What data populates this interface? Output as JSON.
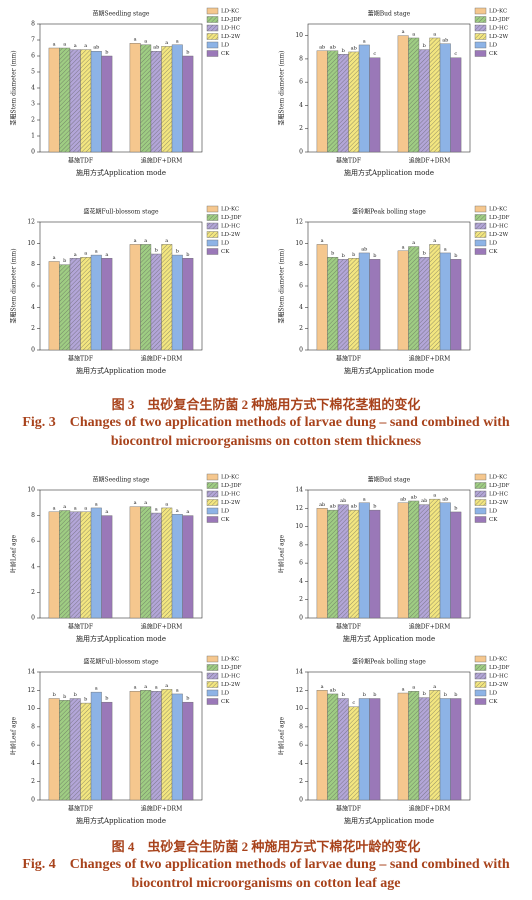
{
  "chart_data": [
    {
      "type": "bar",
      "title": "苗期Seedling stage",
      "y_label": "茎粗Stem diameter (mm)",
      "x_label": "施用方式Application mode",
      "categories": [
        "基施TDF",
        "追施DF+DRM"
      ],
      "ylim": [
        0,
        8
      ],
      "yticks": [
        0,
        1,
        2,
        3,
        4,
        5,
        6,
        7,
        8
      ],
      "series": [
        {
          "name": "LD-KC",
          "color": "#f5c78e",
          "hatch": false,
          "values": [
            6.5,
            6.8
          ],
          "letters": [
            "a",
            "a"
          ]
        },
        {
          "name": "LD-JDF",
          "color": "#9fcd83",
          "hatch": true,
          "values": [
            6.5,
            6.7
          ],
          "letters": [
            "a",
            "a"
          ]
        },
        {
          "name": "LD-HC",
          "color": "#b3a6d8",
          "hatch": true,
          "values": [
            6.4,
            6.3
          ],
          "letters": [
            "a",
            "ab"
          ]
        },
        {
          "name": "LD-2W",
          "color": "#f3e680",
          "hatch": true,
          "values": [
            6.4,
            6.6
          ],
          "letters": [
            "a",
            "a"
          ]
        },
        {
          "name": "LD",
          "color": "#8db3e6",
          "hatch": false,
          "values": [
            6.3,
            6.7
          ],
          "letters": [
            "ab",
            "a"
          ]
        },
        {
          "name": "CK",
          "color": "#9a78b8",
          "hatch": false,
          "values": [
            6.0,
            6.0
          ],
          "letters": [
            "b",
            "b"
          ]
        }
      ]
    },
    {
      "type": "bar",
      "title": "蕾期Bud stage",
      "y_label": "茎粗Stem diameter (mm)",
      "x_label": "施用方式Application mode",
      "categories": [
        "基施TDF",
        "追施DF+DRM"
      ],
      "ylim": [
        0,
        11
      ],
      "yticks": [
        0,
        2,
        4,
        6,
        8,
        10
      ],
      "series": [
        {
          "name": "LD-KC",
          "color": "#f5c78e",
          "hatch": false,
          "values": [
            8.7,
            10.0
          ],
          "letters": [
            "ab",
            "a"
          ]
        },
        {
          "name": "LD-JDF",
          "color": "#9fcd83",
          "hatch": true,
          "values": [
            8.7,
            9.8
          ],
          "letters": [
            "ab",
            "a"
          ]
        },
        {
          "name": "LD-HC",
          "color": "#b3a6d8",
          "hatch": true,
          "values": [
            8.4,
            8.8
          ],
          "letters": [
            "b",
            "b"
          ]
        },
        {
          "name": "LD-2W",
          "color": "#f3e680",
          "hatch": true,
          "values": [
            8.6,
            9.8
          ],
          "letters": [
            "ab",
            "a"
          ]
        },
        {
          "name": "LD",
          "color": "#8db3e6",
          "hatch": false,
          "values": [
            9.2,
            9.3
          ],
          "letters": [
            "a",
            "ab"
          ]
        },
        {
          "name": "CK",
          "color": "#9a78b8",
          "hatch": false,
          "values": [
            8.1,
            8.1
          ],
          "letters": [
            "c",
            "c"
          ]
        }
      ]
    },
    {
      "type": "bar",
      "title": "盛花期Full-blossom stage",
      "y_label": "茎粗Stem diameter (mm)",
      "x_label": "施用方式Application mode",
      "categories": [
        "基施TDF",
        "追施DF+DRM"
      ],
      "ylim": [
        0,
        12
      ],
      "yticks": [
        0,
        2,
        4,
        6,
        8,
        10,
        12
      ],
      "series": [
        {
          "name": "LD-KC",
          "color": "#f5c78e",
          "hatch": false,
          "values": [
            8.3,
            9.9
          ],
          "letters": [
            "a",
            "a"
          ]
        },
        {
          "name": "LD-JDF",
          "color": "#9fcd83",
          "hatch": true,
          "values": [
            8.0,
            9.9
          ],
          "letters": [
            "b",
            "a"
          ]
        },
        {
          "name": "LD-HC",
          "color": "#b3a6d8",
          "hatch": true,
          "values": [
            8.6,
            9.0
          ],
          "letters": [
            "a",
            "b"
          ]
        },
        {
          "name": "LD-2W",
          "color": "#f3e680",
          "hatch": true,
          "values": [
            8.7,
            9.9
          ],
          "letters": [
            "a",
            "a"
          ]
        },
        {
          "name": "LD",
          "color": "#8db3e6",
          "hatch": false,
          "values": [
            8.9,
            8.9
          ],
          "letters": [
            "a",
            "b"
          ]
        },
        {
          "name": "CK",
          "color": "#9a78b8",
          "hatch": false,
          "values": [
            8.6,
            8.6
          ],
          "letters": [
            "a",
            "b"
          ]
        }
      ]
    },
    {
      "type": "bar",
      "title": "盛铃期Peak bolling stage",
      "y_label": "茎粗Stem diameter (mm)",
      "x_label": "施用方式Application mode",
      "categories": [
        "基施TDF",
        "追施DF+DRM"
      ],
      "ylim": [
        0,
        12
      ],
      "yticks": [
        0,
        2,
        4,
        6,
        8,
        10,
        12
      ],
      "series": [
        {
          "name": "LD-KC",
          "color": "#f5c78e",
          "hatch": false,
          "values": [
            9.9,
            9.3
          ],
          "letters": [
            "a",
            "a"
          ]
        },
        {
          "name": "LD-JDF",
          "color": "#9fcd83",
          "hatch": true,
          "values": [
            8.7,
            9.7
          ],
          "letters": [
            "b",
            "a"
          ]
        },
        {
          "name": "LD-HC",
          "color": "#b3a6d8",
          "hatch": true,
          "values": [
            8.5,
            8.7
          ],
          "letters": [
            "b",
            "b"
          ]
        },
        {
          "name": "LD-2W",
          "color": "#f3e680",
          "hatch": true,
          "values": [
            8.6,
            9.9
          ],
          "letters": [
            "b",
            "a"
          ]
        },
        {
          "name": "LD",
          "color": "#8db3e6",
          "hatch": false,
          "values": [
            9.1,
            9.1
          ],
          "letters": [
            "ab",
            "a"
          ]
        },
        {
          "name": "CK",
          "color": "#9a78b8",
          "hatch": false,
          "values": [
            8.5,
            8.5
          ],
          "letters": [
            "b",
            "b"
          ]
        }
      ]
    },
    {
      "type": "bar",
      "title": "苗期Seedling stage",
      "y_label": "叶龄Leaf age",
      "x_label": "施用方式Application mode",
      "categories": [
        "基施TDF",
        "追施DF+DRM"
      ],
      "ylim": [
        0,
        10
      ],
      "yticks": [
        0,
        2,
        4,
        6,
        8,
        10
      ],
      "series": [
        {
          "name": "LD-KC",
          "color": "#f5c78e",
          "hatch": false,
          "values": [
            8.3,
            8.7
          ],
          "letters": [
            "a",
            "a"
          ]
        },
        {
          "name": "LD-JDF",
          "color": "#9fcd83",
          "hatch": true,
          "values": [
            8.4,
            8.7
          ],
          "letters": [
            "a",
            "a"
          ]
        },
        {
          "name": "LD-HC",
          "color": "#b3a6d8",
          "hatch": true,
          "values": [
            8.3,
            8.2
          ],
          "letters": [
            "a",
            "a"
          ]
        },
        {
          "name": "LD-2W",
          "color": "#f3e680",
          "hatch": true,
          "values": [
            8.3,
            8.6
          ],
          "letters": [
            "a",
            "a"
          ]
        },
        {
          "name": "LD",
          "color": "#8db3e6",
          "hatch": false,
          "values": [
            8.6,
            8.1
          ],
          "letters": [
            "a",
            "a"
          ]
        },
        {
          "name": "CK",
          "color": "#9a78b8",
          "hatch": false,
          "values": [
            8.0,
            8.0
          ],
          "letters": [
            "a",
            "a"
          ]
        }
      ]
    },
    {
      "type": "bar",
      "title": "蕾期Bud stage",
      "y_label": "叶龄Leaf age",
      "x_label": "施用方式 Application mode",
      "categories": [
        "基施TDF",
        "追施DF+DRM"
      ],
      "ylim": [
        0,
        14
      ],
      "yticks": [
        0,
        2,
        4,
        6,
        8,
        10,
        12,
        14
      ],
      "series": [
        {
          "name": "LD-KC",
          "color": "#f5c78e",
          "hatch": false,
          "values": [
            12.0,
            12.6
          ],
          "letters": [
            "ab",
            "ab"
          ]
        },
        {
          "name": "LD-JDF",
          "color": "#9fcd83",
          "hatch": true,
          "values": [
            11.8,
            12.8
          ],
          "letters": [
            "ab",
            "ab"
          ]
        },
        {
          "name": "LD-HC",
          "color": "#b3a6d8",
          "hatch": true,
          "values": [
            12.4,
            12.4
          ],
          "letters": [
            "ab",
            "ab"
          ]
        },
        {
          "name": "LD-2W",
          "color": "#f3e680",
          "hatch": true,
          "values": [
            11.8,
            13.0
          ],
          "letters": [
            "ab",
            "a"
          ]
        },
        {
          "name": "LD",
          "color": "#8db3e6",
          "hatch": false,
          "values": [
            12.6,
            12.6
          ],
          "letters": [
            "a",
            "ab"
          ]
        },
        {
          "name": "CK",
          "color": "#9a78b8",
          "hatch": false,
          "values": [
            11.8,
            11.6
          ],
          "letters": [
            "b",
            "b"
          ]
        }
      ]
    },
    {
      "type": "bar",
      "title": "盛花期Full-blossom stage",
      "y_label": "叶龄Leaf age",
      "x_label": "施用方式Application mode",
      "categories": [
        "基施TDF",
        "追施DF+DRM"
      ],
      "ylim": [
        0,
        14
      ],
      "yticks": [
        0,
        2,
        4,
        6,
        8,
        10,
        12,
        14
      ],
      "series": [
        {
          "name": "LD-KC",
          "color": "#f5c78e",
          "hatch": false,
          "values": [
            11.1,
            11.9
          ],
          "letters": [
            "b",
            "a"
          ]
        },
        {
          "name": "LD-JDF",
          "color": "#9fcd83",
          "hatch": true,
          "values": [
            10.9,
            12.0
          ],
          "letters": [
            "b",
            "a"
          ]
        },
        {
          "name": "LD-HC",
          "color": "#b3a6d8",
          "hatch": true,
          "values": [
            11.1,
            11.9
          ],
          "letters": [
            "b",
            "a"
          ]
        },
        {
          "name": "LD-2W",
          "color": "#f3e680",
          "hatch": true,
          "values": [
            10.6,
            12.1
          ],
          "letters": [
            "b",
            "a"
          ]
        },
        {
          "name": "LD",
          "color": "#8db3e6",
          "hatch": false,
          "values": [
            11.8,
            11.6
          ],
          "letters": [
            "a",
            "a"
          ]
        },
        {
          "name": "CK",
          "color": "#9a78b8",
          "hatch": false,
          "values": [
            10.7,
            10.7
          ],
          "letters": [
            "b",
            "b"
          ]
        }
      ]
    },
    {
      "type": "bar",
      "title": "盛铃期Peak bolling stage",
      "y_label": "叶龄Leaf age",
      "x_label": "施用方式Application mode",
      "categories": [
        "基施TDF",
        "追施DF+DRM"
      ],
      "ylim": [
        0,
        14
      ],
      "yticks": [
        0,
        2,
        4,
        6,
        8,
        10,
        12,
        14
      ],
      "series": [
        {
          "name": "LD-KC",
          "color": "#f5c78e",
          "hatch": false,
          "values": [
            12.0,
            11.7
          ],
          "letters": [
            "a",
            "a"
          ]
        },
        {
          "name": "LD-JDF",
          "color": "#9fcd83",
          "hatch": true,
          "values": [
            11.6,
            11.9
          ],
          "letters": [
            "ab",
            "a"
          ]
        },
        {
          "name": "LD-HC",
          "color": "#b3a6d8",
          "hatch": true,
          "values": [
            11.1,
            11.2
          ],
          "letters": [
            "b",
            "b"
          ]
        },
        {
          "name": "LD-2W",
          "color": "#f3e680",
          "hatch": true,
          "values": [
            10.2,
            12.0
          ],
          "letters": [
            "c",
            "a"
          ]
        },
        {
          "name": "LD",
          "color": "#8db3e6",
          "hatch": false,
          "values": [
            11.1,
            11.1
          ],
          "letters": [
            "b",
            "b"
          ]
        },
        {
          "name": "CK",
          "color": "#9a78b8",
          "hatch": false,
          "values": [
            11.1,
            11.1
          ],
          "letters": [
            "b",
            "b"
          ]
        }
      ]
    }
  ],
  "captions": [
    {
      "cn": "图 3　虫砂复合生防菌 2 种施用方式下棉花茎粗的变化",
      "en": "Fig. 3　Changes of two application methods of larvae dung – sand combined with biocontrol microorganisms on cotton stem thickness"
    },
    {
      "cn": "图 4　虫砂复合生防菌 2 种施用方式下棉花叶龄的变化",
      "en": "Fig. 4　Changes of two application methods of larvae dung – sand combined with biocontrol microorganisms on cotton leaf age"
    }
  ]
}
